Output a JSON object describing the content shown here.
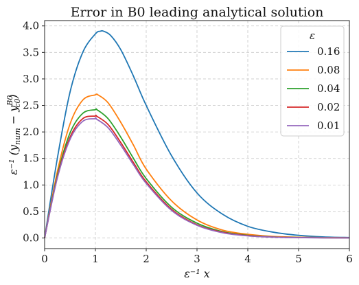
{
  "chart_data": {
    "type": "line",
    "title": "Error in B0 leading analytical solution",
    "xlabel": "ε⁻¹ x",
    "ylabel": {
      "prefix": "ε⁻¹ (y",
      "sub1": "num",
      "middle": " − y",
      "sup": "B0",
      "sub2": "c0",
      "suffix": ")"
    },
    "xlim": [
      0,
      6
    ],
    "ylim": [
      -0.2,
      4.1
    ],
    "xticks": [
      0,
      1,
      2,
      3,
      4,
      5,
      6
    ],
    "xtick_labels": [
      "0",
      "1",
      "2",
      "3",
      "4",
      "5",
      "6"
    ],
    "yticks": [
      0,
      0.5,
      1,
      1.5,
      2,
      2.5,
      3,
      3.5,
      4
    ],
    "ytick_labels": [
      "0.0",
      "0.5",
      "1.0",
      "1.5",
      "2.0",
      "2.5",
      "3.0",
      "3.5",
      "4.0"
    ],
    "grid": true,
    "legend": {
      "title": "ε",
      "placement": "top-right"
    },
    "series": [
      {
        "name": "0.16",
        "color": "#1f77b4",
        "x": [
          0,
          0.25,
          0.5,
          0.75,
          1.0,
          1.1,
          1.16,
          1.3,
          1.5,
          1.75,
          2.0,
          2.5,
          3.0,
          3.5,
          4.0,
          4.5,
          5.0,
          5.5,
          6.0
        ],
        "y": [
          0,
          1.5,
          2.75,
          3.5,
          3.85,
          3.9,
          3.9,
          3.82,
          3.55,
          3.05,
          2.5,
          1.55,
          0.85,
          0.45,
          0.22,
          0.11,
          0.05,
          0.02,
          0.01
        ]
      },
      {
        "name": "0.08",
        "color": "#ff7f0e",
        "x": [
          0,
          0.25,
          0.5,
          0.75,
          1.0,
          1.05,
          1.25,
          1.5,
          1.75,
          2.0,
          2.5,
          3.0,
          3.5,
          4.0,
          4.5,
          5.0,
          5.5,
          6.0
        ],
        "y": [
          0,
          1.25,
          2.15,
          2.6,
          2.7,
          2.7,
          2.55,
          2.18,
          1.75,
          1.3,
          0.7,
          0.34,
          0.15,
          0.07,
          0.03,
          0.015,
          0.008,
          0.004
        ]
      },
      {
        "name": "0.04",
        "color": "#2ca02c",
        "x": [
          0,
          0.25,
          0.5,
          0.75,
          1.0,
          1.03,
          1.25,
          1.5,
          1.75,
          2.0,
          2.5,
          3.0,
          3.5,
          4.0,
          4.5,
          5.0,
          5.5,
          6.0
        ],
        "y": [
          0,
          1.18,
          1.98,
          2.35,
          2.42,
          2.42,
          2.25,
          1.9,
          1.5,
          1.12,
          0.58,
          0.28,
          0.12,
          0.05,
          0.02,
          0.01,
          0.005,
          0.002
        ]
      },
      {
        "name": "0.02",
        "color": "#d62728",
        "x": [
          0,
          0.25,
          0.5,
          0.75,
          1.0,
          1.02,
          1.25,
          1.5,
          1.75,
          2.0,
          2.5,
          3.0,
          3.5,
          4.0,
          4.5,
          5.0,
          5.5,
          6.0
        ],
        "y": [
          0,
          1.15,
          1.9,
          2.25,
          2.3,
          2.3,
          2.14,
          1.8,
          1.42,
          1.06,
          0.54,
          0.25,
          0.11,
          0.045,
          0.018,
          0.008,
          0.004,
          0.002
        ]
      },
      {
        "name": "0.01",
        "color": "#9467bd",
        "x": [
          0,
          0.25,
          0.5,
          0.75,
          1.0,
          1.01,
          1.25,
          1.5,
          1.75,
          2.0,
          2.5,
          3.0,
          3.5,
          4.0,
          4.5,
          5.0,
          5.5,
          6.0
        ],
        "y": [
          0,
          1.13,
          1.86,
          2.2,
          2.25,
          2.25,
          2.08,
          1.75,
          1.38,
          1.03,
          0.52,
          0.24,
          0.1,
          0.04,
          0.016,
          0.007,
          0.003,
          0.001
        ]
      }
    ]
  }
}
